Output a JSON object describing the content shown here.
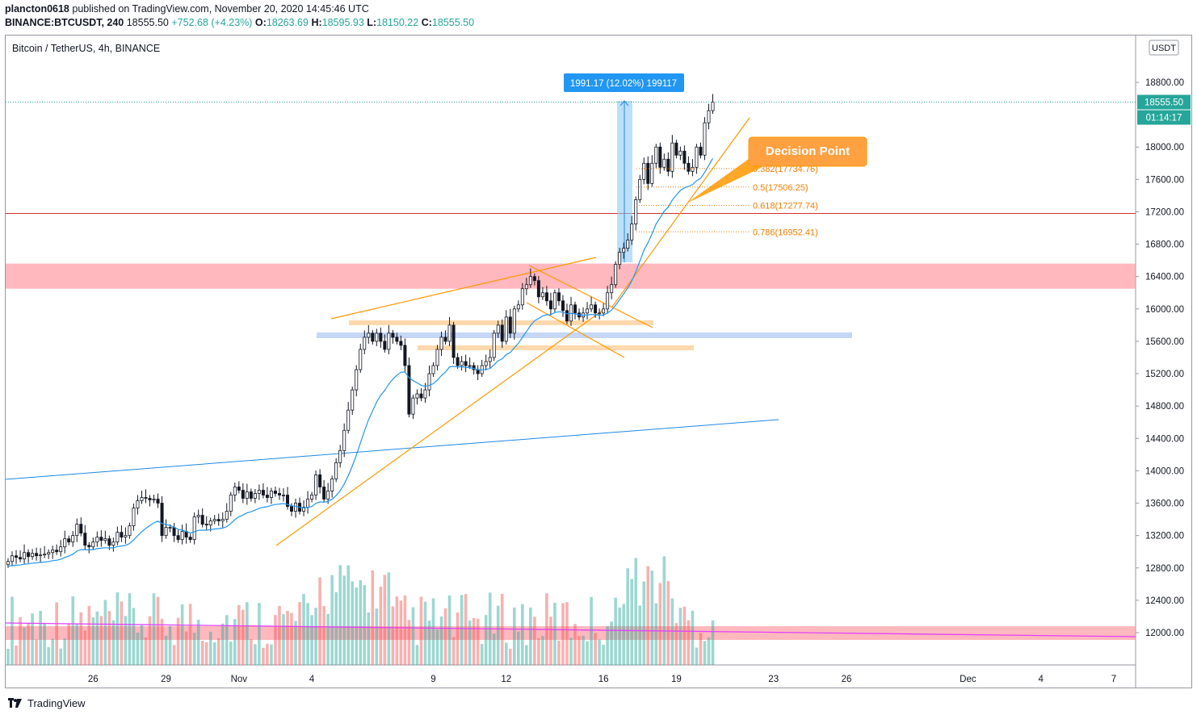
{
  "header": {
    "author": "plancton0618",
    "published_text": "published on TradingView.com, November 20, 2020 14:45:46 UTC",
    "symbol": "BINANCE:BTCUSDT, 240",
    "last": "18555.50",
    "change": "+752.68 (+4.23%)",
    "open_label": "O:",
    "open": "18263.69",
    "high_label": "H:",
    "high": "18595.93",
    "low_label": "L:",
    "low": "18150.22",
    "close_label": "C:",
    "close": "18555.50"
  },
  "pane_title": "Bitcoin / TetherUS, 4h, BINANCE",
  "footer": {
    "brand": "TradingView"
  },
  "colors": {
    "up": "#26a69a",
    "down": "#ef5350",
    "fib": "#f57c00",
    "ema": "#2196f3",
    "resistance": "#ff9aa2",
    "support": "#c5d7f5"
  },
  "chart_data": {
    "type": "candlestick",
    "currency": "USDT",
    "y_range": [
      11600,
      19000
    ],
    "y_ticks": [
      12000,
      12400,
      12800,
      13200,
      13600,
      14000,
      14400,
      14800,
      15200,
      15600,
      16000,
      16400,
      16800,
      17200,
      17600,
      18000,
      18400,
      18800
    ],
    "y_tick_labels": [
      "12000.00",
      "12400.00",
      "12800.00",
      "13200.00",
      "13600.00",
      "14000.00",
      "14400.00",
      "14800.00",
      "15200.00",
      "15600.00",
      "16000.00",
      "16400.00",
      "16800.00",
      "17200.00",
      "17600.00",
      "18000.00",
      "",
      "18800.00"
    ],
    "x_ticks": [
      {
        "label": "26",
        "bar": 21
      },
      {
        "label": "29",
        "bar": 39
      },
      {
        "label": "Nov",
        "bar": 57
      },
      {
        "label": "4",
        "bar": 75
      },
      {
        "label": "9",
        "bar": 105
      },
      {
        "label": "12",
        "bar": 123
      },
      {
        "label": "16",
        "bar": 147
      },
      {
        "label": "19",
        "bar": 165
      },
      {
        "label": "23",
        "bar": 189
      },
      {
        "label": "26",
        "bar": 207
      },
      {
        "label": "Dec",
        "bar": 237
      },
      {
        "label": "4",
        "bar": 255
      },
      {
        "label": "7",
        "bar": 273
      }
    ],
    "bar_count": 279,
    "closes": [
      12880,
      12950,
      12930,
      12910,
      12990,
      12940,
      12980,
      12950,
      12960,
      12970,
      12990,
      13020,
      13000,
      13060,
      13160,
      13120,
      13200,
      13340,
      13230,
      13080,
      13060,
      13120,
      13180,
      13140,
      13160,
      13080,
      13120,
      13240,
      13180,
      13200,
      13320,
      13540,
      13630,
      13670,
      13660,
      13640,
      13650,
      13600,
      13200,
      13300,
      13300,
      13200,
      13150,
      13250,
      13180,
      13150,
      13430,
      13450,
      13340,
      13330,
      13380,
      13400,
      13380,
      13400,
      13500,
      13700,
      13800,
      13760,
      13660,
      13740,
      13660,
      13720,
      13760,
      13700,
      13670,
      13750,
      13720,
      13700,
      13700,
      13560,
      13500,
      13600,
      13500,
      13550,
      13650,
      13700,
      13950,
      13800,
      13650,
      13750,
      13900,
      14100,
      14250,
      14500,
      14750,
      15000,
      15250,
      15500,
      15650,
      15700,
      15600,
      15700,
      15600,
      15500,
      15700,
      15650,
      15600,
      15550,
      15300,
      14700,
      14900,
      14950,
      14900,
      15000,
      15200,
      15300,
      15500,
      15650,
      15600,
      15800,
      15400,
      15300,
      15350,
      15300,
      15300,
      15250,
      15200,
      15300,
      15350,
      15400,
      15700,
      15800,
      15600,
      15900,
      15700,
      16000,
      16050,
      16250,
      16300,
      16400,
      16350,
      16150,
      16200,
      16100,
      16000,
      16200,
      16100,
      15980,
      15850,
      16050,
      15950,
      15900,
      15950,
      16000,
      16050,
      15950,
      15950,
      16000,
      16200,
      16300,
      16550,
      16700,
      16750,
      16850,
      17050,
      17350,
      17600,
      17800,
      17550,
      17800,
      18000,
      17750,
      17850,
      17700,
      18050,
      17900,
      17950,
      17800,
      17700,
      17750,
      18000,
      17900,
      18300,
      18450,
      18555.5
    ],
    "volume_scale_note": "",
    "fibonacci": [
      {
        "label": "0.382(17734.76)",
        "price": 17734.76
      },
      {
        "label": "0.5(17506.25)",
        "price": 17506.25
      },
      {
        "label": "0.618(17277.74)",
        "price": 17277.74
      },
      {
        "label": "0.786(16952.41)",
        "price": 16952.41
      }
    ],
    "resistance_zone": [
      16250,
      16560
    ],
    "horizontal_line": 17180,
    "measure": {
      "label": "1991.17 (12.02%) 199117",
      "from": 16575,
      "to": 18570
    },
    "annotation": "Decision Point",
    "last_price_label": "18555.50",
    "countdown": "01:14:17"
  }
}
